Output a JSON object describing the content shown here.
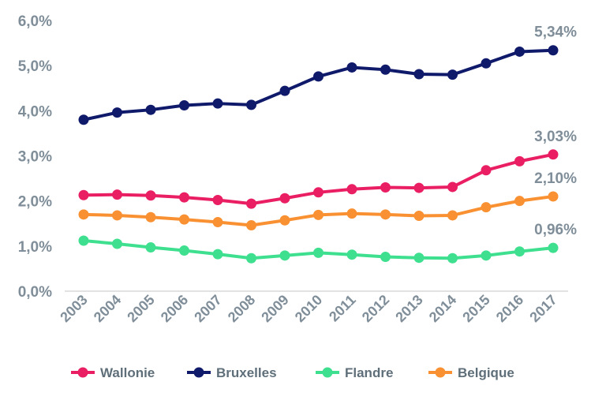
{
  "chart_data": {
    "type": "line",
    "x": [
      "2003",
      "2004",
      "2005",
      "2006",
      "2007",
      "2008",
      "2009",
      "2010",
      "2011",
      "2012",
      "2013",
      "2014",
      "2015",
      "2016",
      "2017"
    ],
    "ylim": [
      0,
      6
    ],
    "y_ticks": [
      "0,0%",
      "1,0%",
      "2,0%",
      "3,0%",
      "4,0%",
      "5,0%",
      "6,0%"
    ],
    "grid": false,
    "legend_position": "bottom",
    "series": [
      {
        "name": "Wallonie",
        "color": "#ea1e63",
        "values": [
          2.13,
          2.14,
          2.12,
          2.08,
          2.02,
          1.94,
          2.06,
          2.19,
          2.26,
          2.3,
          2.29,
          2.31,
          2.68,
          2.88,
          3.03
        ],
        "end_label": "3,03%"
      },
      {
        "name": "Bruxelles",
        "color": "#101a6b",
        "values": [
          3.8,
          3.96,
          4.02,
          4.12,
          4.16,
          4.13,
          4.44,
          4.76,
          4.96,
          4.91,
          4.81,
          4.8,
          5.05,
          5.31,
          5.34
        ],
        "end_label": "5,34%"
      },
      {
        "name": "Flandre",
        "color": "#3ee08f",
        "values": [
          1.12,
          1.05,
          0.97,
          0.9,
          0.82,
          0.73,
          0.79,
          0.85,
          0.81,
          0.76,
          0.74,
          0.73,
          0.79,
          0.88,
          0.96
        ],
        "end_label": "0,96%"
      },
      {
        "name": "Belgique",
        "color": "#f99133",
        "values": [
          1.7,
          1.68,
          1.64,
          1.59,
          1.53,
          1.46,
          1.57,
          1.69,
          1.72,
          1.7,
          1.67,
          1.68,
          1.86,
          2.0,
          2.1
        ],
        "end_label": "2,10%"
      }
    ]
  }
}
